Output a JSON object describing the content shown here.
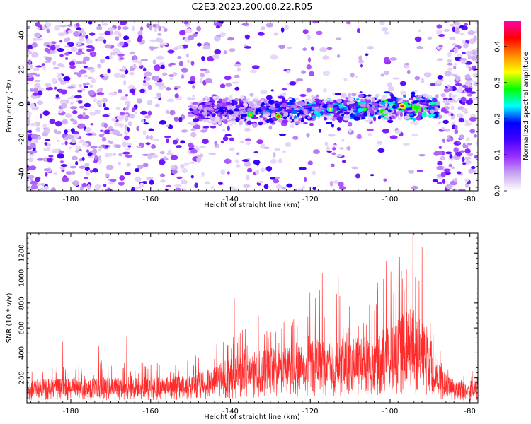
{
  "title": "C2E3.2023.200.08.22.R05",
  "colors": {
    "accent_line": "#ff2a2a",
    "axis": "#000000",
    "background": "#ffffff"
  },
  "chart_data": [
    {
      "type": "heatmap",
      "name": "spectrogram",
      "xlabel": "Height of straight line (km)",
      "ylabel": "Frequency (Hz)",
      "xlim": [
        -191,
        -78
      ],
      "ylim": [
        -50,
        48
      ],
      "xticks": [
        -180,
        -160,
        -140,
        -120,
        -100,
        -80
      ],
      "yticks": [
        -40,
        -20,
        0,
        20,
        40
      ],
      "colorbar": {
        "label": "Normalized spectral amplitude",
        "range": [
          0.0,
          0.47
        ],
        "ticks": [
          0.0,
          0.1,
          0.2,
          0.3,
          0.4
        ],
        "colormap": [
          "#ffffff",
          "#c9a7f0",
          "#9b30ff",
          "#4400ff",
          "#0000ff",
          "#00ffff",
          "#00ff00",
          "#ffff00",
          "#ff8800",
          "#ff0000",
          "#ff00aa"
        ]
      },
      "signal_band": {
        "center_frequency_hz": -3,
        "band_height_start_km": -150,
        "band_height_end_km": -88,
        "peak_amplitude": 0.45,
        "peak_height_km": -97
      }
    },
    {
      "type": "line",
      "name": "snr",
      "xlabel": "Height of straight line (km)",
      "ylabel": "SNR (10 * v/v)",
      "xlim": [
        -191,
        -78
      ],
      "ylim": [
        0,
        1360
      ],
      "xticks": [
        -180,
        -160,
        -140,
        -120,
        -100,
        -80
      ],
      "yticks": [
        200,
        400,
        600,
        800,
        1000,
        1200
      ],
      "series": [
        {
          "name": "SNR",
          "color": "#ff2a2a",
          "envelope": {
            "x": [
              -191,
              -180,
              -170,
              -160,
              -150,
              -145,
              -140,
              -135,
              -130,
              -125,
              -120,
              -115,
              -110,
              -105,
              -100,
              -97,
              -95,
              -92,
              -90,
              -88,
              -85,
              -80,
              -78
            ],
            "y_max": [
              300,
              310,
              350,
              340,
              360,
              460,
              560,
              640,
              700,
              720,
              900,
              950,
              820,
              880,
              1120,
              1220,
              1360,
              1050,
              930,
              560,
              280,
              260,
              300
            ],
            "y_baseline": [
              130,
              135,
              135,
              140,
              150,
              190,
              240,
              270,
              290,
              300,
              330,
              350,
              340,
              360,
              420,
              470,
              500,
              430,
              380,
              220,
              130,
              120,
              125
            ]
          },
          "spikes": [
            {
              "x": -182,
              "y": 490
            },
            {
              "x": -173,
              "y": 460
            },
            {
              "x": -166,
              "y": 530
            },
            {
              "x": -139,
              "y": 840
            },
            {
              "x": -133,
              "y": 700
            },
            {
              "x": -117,
              "y": 1040
            },
            {
              "x": -113,
              "y": 1020
            },
            {
              "x": -101,
              "y": 1140
            },
            {
              "x": -96,
              "y": 1280
            },
            {
              "x": -94.3,
              "y": 1360
            },
            {
              "x": -92,
              "y": 1250
            }
          ]
        }
      ]
    }
  ]
}
